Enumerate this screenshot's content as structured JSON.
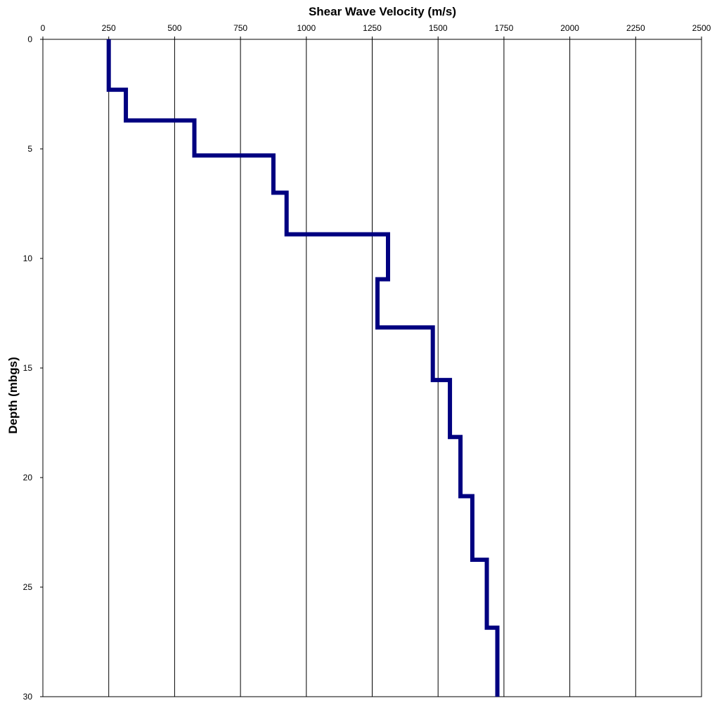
{
  "chart_data": {
    "type": "line",
    "title": "",
    "xlabel": "Shear Wave Velocity (m/s)",
    "ylabel": "Depth (mbgs)",
    "xlim": [
      0,
      2500
    ],
    "ylim": [
      0,
      30
    ],
    "y_inverted": true,
    "x_axis_position": "top",
    "x_ticks": [
      0,
      250,
      500,
      750,
      1000,
      1250,
      1500,
      1750,
      2000,
      2250,
      2500
    ],
    "y_ticks": [
      0,
      5,
      10,
      15,
      20,
      25,
      30
    ],
    "grid": "vertical",
    "legend": "none",
    "series": [
      {
        "color": "#000080",
        "points": [
          {
            "velocity": 250,
            "depth": 0
          },
          {
            "velocity": 250,
            "depth": 2.3
          },
          {
            "velocity": 315,
            "depth": 2.3
          },
          {
            "velocity": 315,
            "depth": 3.7
          },
          {
            "velocity": 575,
            "depth": 3.7
          },
          {
            "velocity": 575,
            "depth": 5.3
          },
          {
            "velocity": 875,
            "depth": 5.3
          },
          {
            "velocity": 875,
            "depth": 7.0
          },
          {
            "velocity": 925,
            "depth": 7.0
          },
          {
            "velocity": 925,
            "depth": 8.9
          },
          {
            "velocity": 1310,
            "depth": 8.9
          },
          {
            "velocity": 1310,
            "depth": 10.95
          },
          {
            "velocity": 1270,
            "depth": 10.95
          },
          {
            "velocity": 1270,
            "depth": 13.15
          },
          {
            "velocity": 1480,
            "depth": 13.15
          },
          {
            "velocity": 1480,
            "depth": 15.55
          },
          {
            "velocity": 1545,
            "depth": 15.55
          },
          {
            "velocity": 1545,
            "depth": 18.15
          },
          {
            "velocity": 1585,
            "depth": 18.15
          },
          {
            "velocity": 1585,
            "depth": 20.85
          },
          {
            "velocity": 1630,
            "depth": 20.85
          },
          {
            "velocity": 1630,
            "depth": 23.75
          },
          {
            "velocity": 1685,
            "depth": 23.75
          },
          {
            "velocity": 1685,
            "depth": 26.85
          },
          {
            "velocity": 1725,
            "depth": 26.85
          },
          {
            "velocity": 1725,
            "depth": 30
          }
        ]
      }
    ]
  }
}
